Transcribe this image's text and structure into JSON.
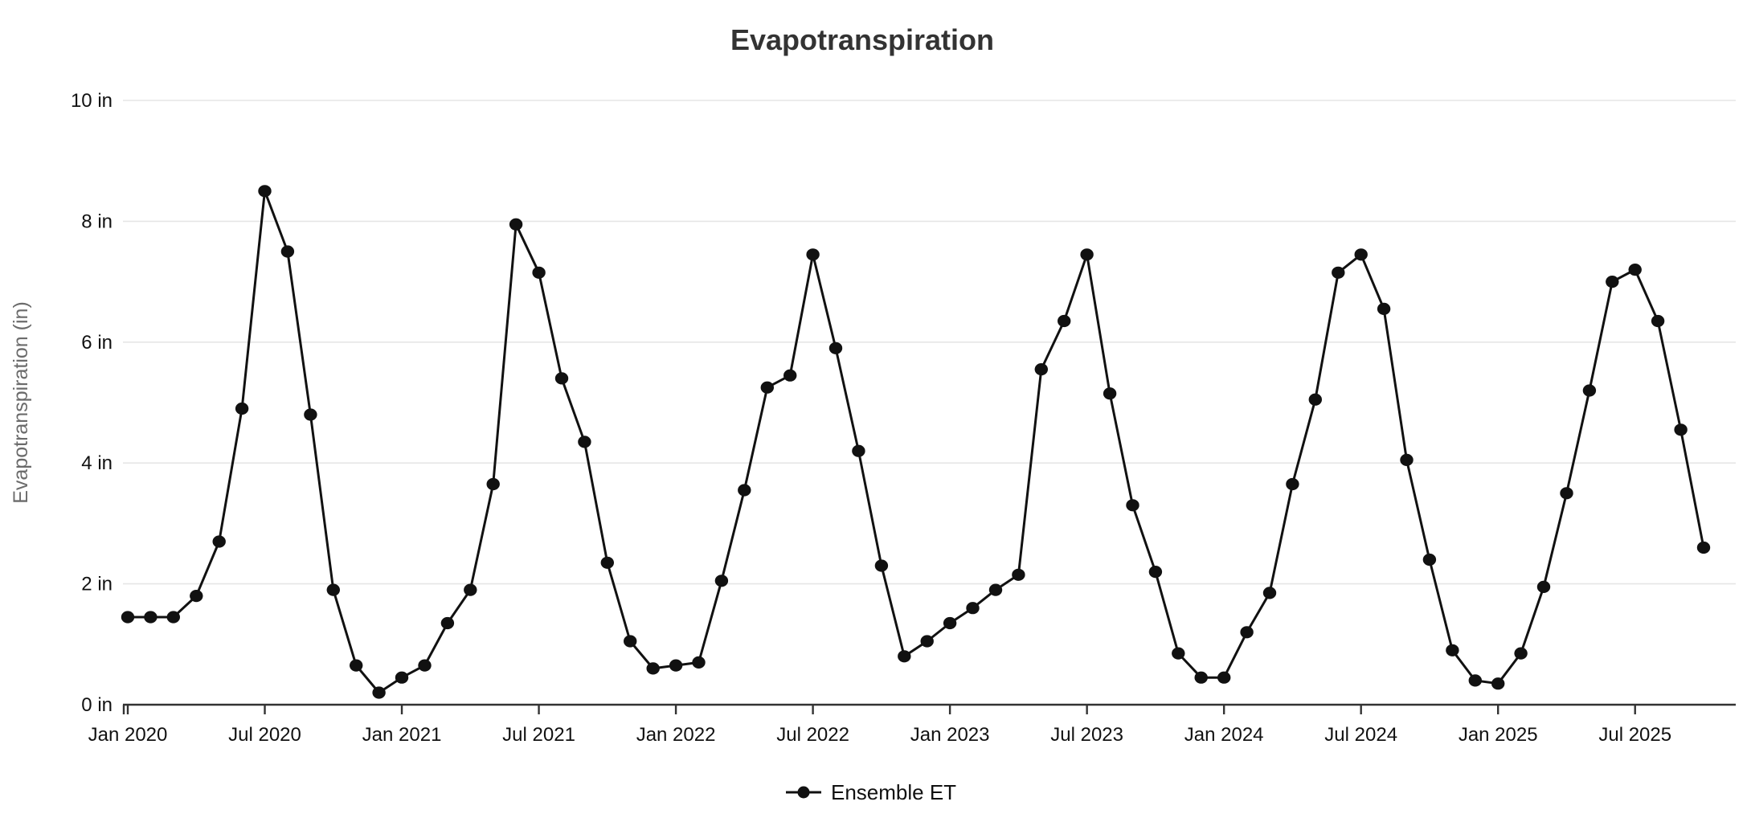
{
  "title": "Evapotranspiration",
  "y_axis": {
    "title": "Evapotranspiration (in)",
    "tick_labels": [
      "0 in",
      "2 in",
      "4 in",
      "6 in",
      "8 in",
      "10 in"
    ],
    "tick_values": [
      0,
      2,
      4,
      6,
      8,
      10
    ]
  },
  "x_axis": {
    "tick_labels": [
      "Jan 2020",
      "Jul 2020",
      "Jan 2021",
      "Jul 2021",
      "Jan 2022",
      "Jul 2022",
      "Jan 2023",
      "Jul 2023",
      "Jan 2024",
      "Jul 2024",
      "Jan 2025",
      "Jul 2025"
    ]
  },
  "legend": {
    "label": "Ensemble ET",
    "position": "bottom-center"
  },
  "colors": {
    "line": "#111111",
    "marker": "#111111",
    "axis": "#333333",
    "gridline": "#e6e6e6",
    "title_text": "#333333",
    "tick_text": "#111111",
    "y_title_text": "#6b6b6b",
    "background": "#ffffff"
  },
  "chart_data": {
    "type": "line",
    "title": "Evapotranspiration",
    "xlabel": "",
    "ylabel": "Evapotranspiration (in)",
    "ylim": [
      0,
      10
    ],
    "grid": "horizontal",
    "legend_position": "bottom-center",
    "marker": "filled-circle",
    "x": [
      "Jan 2020",
      "Feb 2020",
      "Mar 2020",
      "Apr 2020",
      "May 2020",
      "Jun 2020",
      "Jul 2020",
      "Aug 2020",
      "Sep 2020",
      "Oct 2020",
      "Nov 2020",
      "Dec 2020",
      "Jan 2021",
      "Feb 2021",
      "Mar 2021",
      "Apr 2021",
      "May 2021",
      "Jun 2021",
      "Jul 2021",
      "Aug 2021",
      "Sep 2021",
      "Oct 2021",
      "Nov 2021",
      "Dec 2021",
      "Jan 2022",
      "Feb 2022",
      "Mar 2022",
      "Apr 2022",
      "May 2022",
      "Jun 2022",
      "Jul 2022",
      "Aug 2022",
      "Sep 2022",
      "Oct 2022",
      "Nov 2022",
      "Dec 2022",
      "Jan 2023",
      "Feb 2023",
      "Mar 2023",
      "Apr 2023",
      "May 2023",
      "Jun 2023",
      "Jul 2023",
      "Aug 2023",
      "Sep 2023",
      "Oct 2023",
      "Nov 2023",
      "Dec 2023",
      "Jan 2024",
      "Feb 2024",
      "Mar 2024",
      "Apr 2024",
      "May 2024",
      "Jun 2024",
      "Jul 2024",
      "Aug 2024",
      "Sep 2024",
      "Oct 2024",
      "Nov 2024",
      "Dec 2024",
      "Jan 2025",
      "Feb 2025",
      "Mar 2025",
      "Apr 2025",
      "May 2025",
      "Jun 2025",
      "Jul 2025",
      "Aug 2025",
      "Sep 2025",
      "Oct 2025"
    ],
    "series": [
      {
        "name": "Ensemble ET",
        "unit": "in",
        "values": [
          1.45,
          1.45,
          1.45,
          1.8,
          2.7,
          4.9,
          8.5,
          7.5,
          4.8,
          1.9,
          0.65,
          0.2,
          0.45,
          0.65,
          1.35,
          1.9,
          3.65,
          7.95,
          7.15,
          5.4,
          4.35,
          2.35,
          1.05,
          0.6,
          0.65,
          0.7,
          2.05,
          3.55,
          5.25,
          5.45,
          7.45,
          5.9,
          4.2,
          2.3,
          0.8,
          1.05,
          1.35,
          1.6,
          1.9,
          2.15,
          5.55,
          6.35,
          7.45,
          5.15,
          3.3,
          2.2,
          0.85,
          0.45,
          0.45,
          1.2,
          1.85,
          3.65,
          5.05,
          7.15,
          7.45,
          6.55,
          4.05,
          2.4,
          0.9,
          0.4,
          0.35,
          0.85,
          1.95,
          3.5,
          5.2,
          7.0,
          7.2,
          6.35,
          4.55,
          2.6
        ]
      }
    ]
  }
}
